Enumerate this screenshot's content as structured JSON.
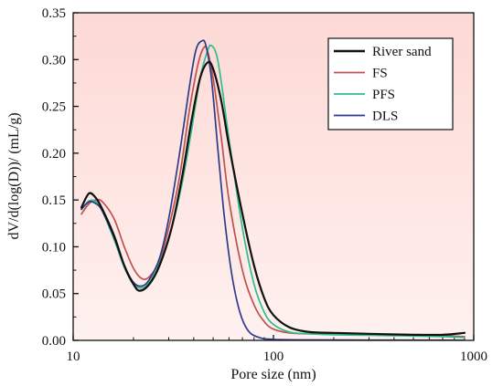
{
  "chart_data": {
    "type": "line",
    "xlabel": "Pore size (nm)",
    "ylabel": "dV/d(log(D))/ (mL/g)",
    "x_scale": "log",
    "xlim": [
      10,
      1000
    ],
    "ylim": [
      0,
      0.35
    ],
    "x_ticks": [
      10,
      100,
      1000
    ],
    "x_tick_labels": [
      "10",
      "100",
      "1000"
    ],
    "y_ticks": [
      0,
      0.05,
      0.1,
      0.15,
      0.2,
      0.25,
      0.3,
      0.35
    ],
    "y_tick_labels": [
      "0.00",
      "0.05",
      "0.10",
      "0.15",
      "0.20",
      "0.25",
      "0.30",
      "0.35"
    ],
    "grid": false,
    "legend_position": "top-right",
    "background_color": "#fde3e0",
    "series": [
      {
        "name": "River sand",
        "color": "#111111",
        "points": [
          [
            11,
            0.142
          ],
          [
            12,
            0.157
          ],
          [
            13,
            0.152
          ],
          [
            14,
            0.14
          ],
          [
            16,
            0.112
          ],
          [
            18,
            0.08
          ],
          [
            20,
            0.06
          ],
          [
            21.5,
            0.053
          ],
          [
            24,
            0.06
          ],
          [
            27,
            0.08
          ],
          [
            31,
            0.12
          ],
          [
            35,
            0.175
          ],
          [
            39,
            0.235
          ],
          [
            43,
            0.28
          ],
          [
            47,
            0.297
          ],
          [
            50,
            0.29
          ],
          [
            55,
            0.255
          ],
          [
            60,
            0.208
          ],
          [
            70,
            0.135
          ],
          [
            80,
            0.08
          ],
          [
            90,
            0.045
          ],
          [
            100,
            0.027
          ],
          [
            120,
            0.014
          ],
          [
            150,
            0.009
          ],
          [
            200,
            0.008
          ],
          [
            300,
            0.007
          ],
          [
            500,
            0.006
          ],
          [
            700,
            0.006
          ],
          [
            900,
            0.008
          ]
        ]
      },
      {
        "name": "FS",
        "color": "#c0504d",
        "points": [
          [
            11,
            0.135
          ],
          [
            12,
            0.146
          ],
          [
            13,
            0.15
          ],
          [
            14,
            0.148
          ],
          [
            16,
            0.13
          ],
          [
            18,
            0.1
          ],
          [
            20,
            0.077
          ],
          [
            22,
            0.066
          ],
          [
            24,
            0.068
          ],
          [
            27,
            0.085
          ],
          [
            30,
            0.12
          ],
          [
            34,
            0.175
          ],
          [
            38,
            0.245
          ],
          [
            42,
            0.295
          ],
          [
            45,
            0.313
          ],
          [
            47,
            0.308
          ],
          [
            50,
            0.28
          ],
          [
            55,
            0.215
          ],
          [
            60,
            0.15
          ],
          [
            70,
            0.075
          ],
          [
            80,
            0.038
          ],
          [
            90,
            0.02
          ],
          [
            100,
            0.012
          ],
          [
            120,
            0.008
          ],
          [
            150,
            0.007
          ],
          [
            200,
            0.007
          ],
          [
            400,
            0.006
          ],
          [
            700,
            0.005
          ],
          [
            900,
            0.004
          ]
        ]
      },
      {
        "name": "PFS",
        "color": "#2ebd8c",
        "points": [
          [
            11,
            0.14
          ],
          [
            12,
            0.149
          ],
          [
            13,
            0.148
          ],
          [
            14,
            0.138
          ],
          [
            16,
            0.108
          ],
          [
            18,
            0.078
          ],
          [
            20,
            0.06
          ],
          [
            22,
            0.056
          ],
          [
            24,
            0.062
          ],
          [
            27,
            0.082
          ],
          [
            31,
            0.12
          ],
          [
            35,
            0.168
          ],
          [
            39,
            0.225
          ],
          [
            43,
            0.28
          ],
          [
            47,
            0.31
          ],
          [
            49,
            0.315
          ],
          [
            52,
            0.305
          ],
          [
            55,
            0.275
          ],
          [
            60,
            0.215
          ],
          [
            70,
            0.12
          ],
          [
            80,
            0.06
          ],
          [
            90,
            0.03
          ],
          [
            100,
            0.017
          ],
          [
            120,
            0.009
          ],
          [
            150,
            0.007
          ],
          [
            200,
            0.006
          ],
          [
            400,
            0.005
          ],
          [
            700,
            0.004
          ],
          [
            900,
            0.003
          ]
        ]
      },
      {
        "name": "DLS",
        "color": "#2e3a8c",
        "points": [
          [
            11,
            0.14
          ],
          [
            12,
            0.148
          ],
          [
            13,
            0.146
          ],
          [
            14,
            0.138
          ],
          [
            16,
            0.11
          ],
          [
            18,
            0.08
          ],
          [
            20,
            0.062
          ],
          [
            22,
            0.058
          ],
          [
            24,
            0.065
          ],
          [
            27,
            0.088
          ],
          [
            30,
            0.13
          ],
          [
            34,
            0.2
          ],
          [
            38,
            0.27
          ],
          [
            41,
            0.31
          ],
          [
            44,
            0.32
          ],
          [
            46,
            0.315
          ],
          [
            49,
            0.28
          ],
          [
            53,
            0.2
          ],
          [
            57,
            0.13
          ],
          [
            62,
            0.07
          ],
          [
            68,
            0.03
          ],
          [
            75,
            0.01
          ],
          [
            85,
            0.003
          ],
          [
            100,
            0.001
          ],
          [
            150,
            0.0005
          ],
          [
            300,
            0.0003
          ],
          [
            900,
            0.0002
          ]
        ]
      }
    ]
  }
}
